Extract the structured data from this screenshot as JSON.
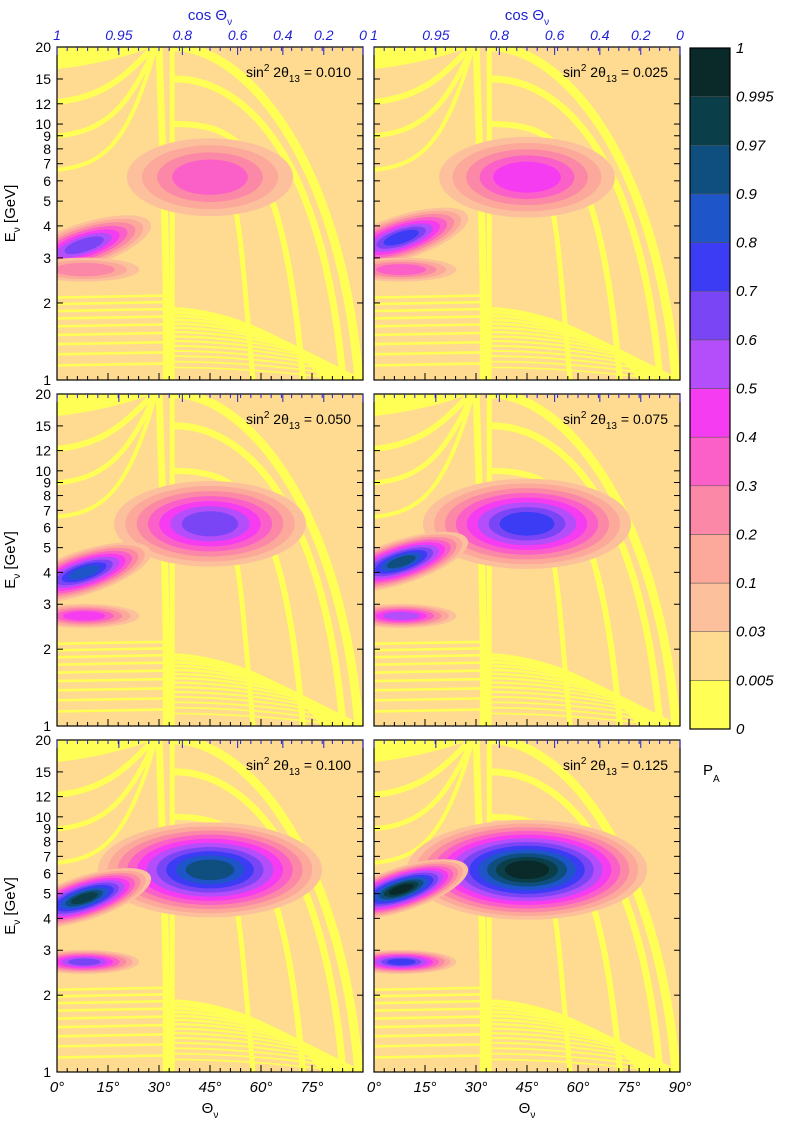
{
  "chart_data": {
    "type": "heatmap",
    "quantity": "P",
    "quantity_sub": "A",
    "ylabel": "E",
    "ylabel_sub": "ν",
    "ylabel_unit": "[GeV]",
    "xlabel": "Θ",
    "xlabel_sub": "ν",
    "top_axis_label": "cos Θ",
    "top_axis_sub": "ν",
    "x_range_deg": [
      0,
      90
    ],
    "y_range_gev": [
      1,
      20
    ],
    "y_scale": "log",
    "x_ticks": [
      "0°",
      "15°",
      "30°",
      "45°",
      "60°",
      "75°",
      "90°"
    ],
    "x_tick_values": [
      0,
      15,
      30,
      45,
      60,
      75,
      90
    ],
    "y_ticks": [
      "1",
      "2",
      "3",
      "4",
      "5",
      "6",
      "7",
      "8",
      "9",
      "10",
      "12",
      "15",
      "20"
    ],
    "y_tick_values": [
      1,
      2,
      3,
      4,
      5,
      6,
      7,
      8,
      9,
      10,
      12,
      15,
      20
    ],
    "cos_ticks": [
      "1",
      "0.95",
      "0.8",
      "0.6",
      "0.4",
      "0.2",
      "0"
    ],
    "cos_tick_values": [
      1,
      0.95,
      0.8,
      0.6,
      0.4,
      0.2,
      0
    ],
    "core_mantle_boundary_deg": 33,
    "colorbar": {
      "labels": [
        "1",
        "0.995",
        "0.97",
        "0.9",
        "0.8",
        "0.7",
        "0.6",
        "0.5",
        "0.4",
        "0.3",
        "0.2",
        "0.1",
        "0.03",
        "0.005",
        "0"
      ],
      "colors": [
        "#ffff55",
        "#fedb90",
        "#fcc19c",
        "#fca89a",
        "#fc88a8",
        "#fb60c8",
        "#f53cf0",
        "#b44dfa",
        "#7a45f5",
        "#3c3cf5",
        "#1e55c8",
        "#0f4f80",
        "#0a3f4a",
        "#0a2a2a"
      ]
    },
    "panels": [
      {
        "name": "panel-1",
        "annotation_prefix": "sin",
        "annotation_exp": "2",
        "annotation_mid": " 2θ",
        "annotation_sub": "13",
        "annotation_value": " = 0.010",
        "sin2_2theta13": 0.01
      },
      {
        "name": "panel-2",
        "annotation_prefix": "sin",
        "annotation_exp": "2",
        "annotation_mid": " 2θ",
        "annotation_sub": "13",
        "annotation_value": " = 0.025",
        "sin2_2theta13": 0.025
      },
      {
        "name": "panel-3",
        "annotation_prefix": "sin",
        "annotation_exp": "2",
        "annotation_mid": " 2θ",
        "annotation_sub": "13",
        "annotation_value": " = 0.050",
        "sin2_2theta13": 0.05
      },
      {
        "name": "panel-4",
        "annotation_prefix": "sin",
        "annotation_exp": "2",
        "annotation_mid": " 2θ",
        "annotation_sub": "13",
        "annotation_value": " = 0.075",
        "sin2_2theta13": 0.075
      },
      {
        "name": "panel-5",
        "annotation_prefix": "sin",
        "annotation_exp": "2",
        "annotation_mid": " 2θ",
        "annotation_sub": "13",
        "annotation_value": " = 0.100",
        "sin2_2theta13": 0.1
      },
      {
        "name": "panel-6",
        "annotation_prefix": "sin",
        "annotation_exp": "2",
        "annotation_mid": " 2θ",
        "annotation_sub": "13",
        "annotation_value": " = 0.125",
        "sin2_2theta13": 0.125
      }
    ]
  }
}
